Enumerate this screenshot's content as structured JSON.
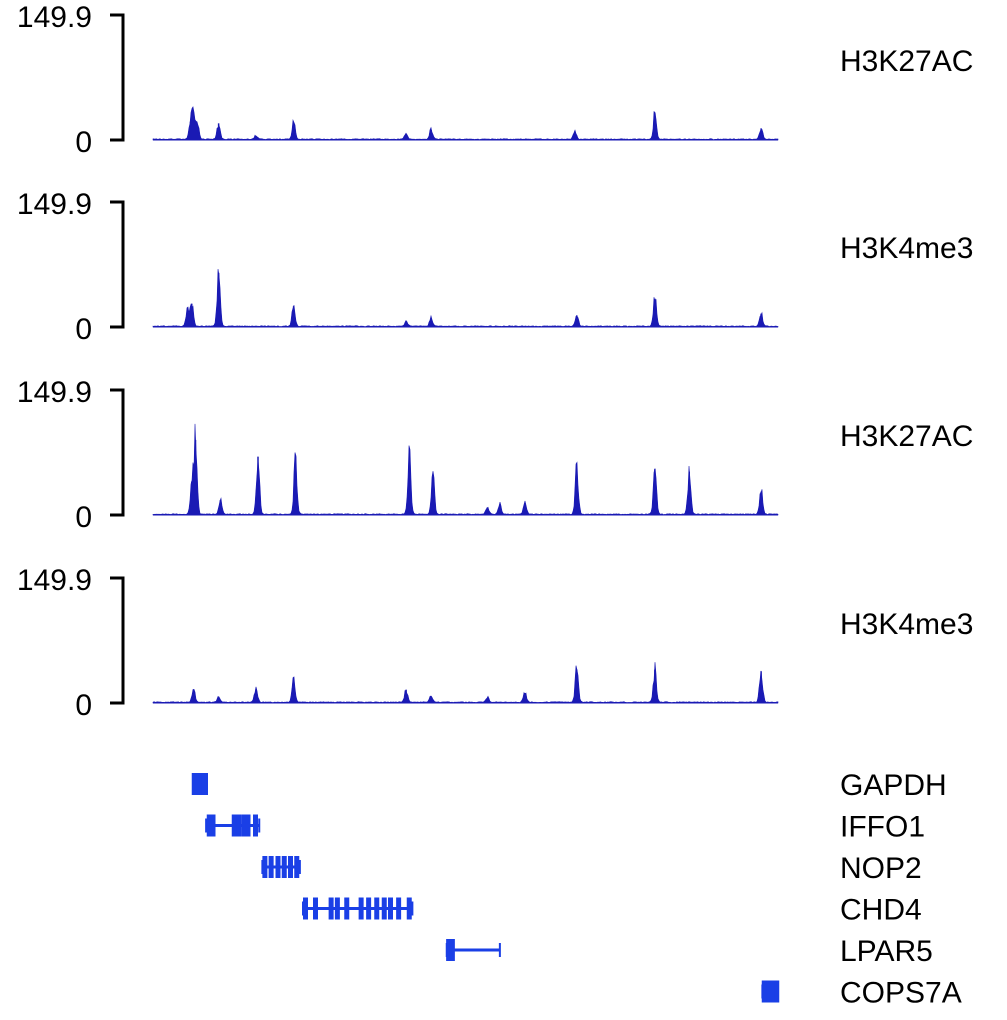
{
  "chart_data": {
    "type": "area",
    "title": "",
    "xlabel": "",
    "ylabel": "",
    "colors": {
      "signal": "#1a1ab4",
      "gene": "#1a3fe6",
      "axis": "#000000"
    },
    "ylim": [
      0,
      149.9
    ],
    "yticks": [
      "149.9",
      "0"
    ],
    "x_range": [
      0,
      100
    ],
    "tracks": [
      {
        "name": "H3K27AC",
        "peaks": [
          {
            "x": 6.5,
            "h": 30
          },
          {
            "x": 6.0,
            "h": 22
          },
          {
            "x": 7.1,
            "h": 18
          },
          {
            "x": 10.5,
            "h": 20
          },
          {
            "x": 16.5,
            "h": 5
          },
          {
            "x": 22.5,
            "h": 20
          },
          {
            "x": 40.5,
            "h": 7
          },
          {
            "x": 44.5,
            "h": 12
          },
          {
            "x": 67.5,
            "h": 10
          },
          {
            "x": 80.3,
            "h": 32
          },
          {
            "x": 97.3,
            "h": 14
          }
        ]
      },
      {
        "name": "H3K4me3",
        "peaks": [
          {
            "x": 6.2,
            "h": 28
          },
          {
            "x": 5.5,
            "h": 20
          },
          {
            "x": 10.5,
            "h": 65
          },
          {
            "x": 22.5,
            "h": 25
          },
          {
            "x": 40.5,
            "h": 6
          },
          {
            "x": 44.5,
            "h": 10
          },
          {
            "x": 67.8,
            "h": 14
          },
          {
            "x": 80.3,
            "h": 34
          },
          {
            "x": 97.3,
            "h": 16
          }
        ]
      },
      {
        "name": "H3K27AC",
        "peaks": [
          {
            "x": 6.8,
            "h": 90
          },
          {
            "x": 6.2,
            "h": 40
          },
          {
            "x": 10.8,
            "h": 18
          },
          {
            "x": 16.8,
            "h": 70
          },
          {
            "x": 22.8,
            "h": 70
          },
          {
            "x": 41.0,
            "h": 70
          },
          {
            "x": 44.8,
            "h": 45
          },
          {
            "x": 53.5,
            "h": 9
          },
          {
            "x": 55.5,
            "h": 12
          },
          {
            "x": 59.5,
            "h": 14
          },
          {
            "x": 67.8,
            "h": 58
          },
          {
            "x": 80.3,
            "h": 55
          },
          {
            "x": 85.8,
            "h": 52
          },
          {
            "x": 97.3,
            "h": 28
          }
        ]
      },
      {
        "name": "H3K4me3",
        "peaks": [
          {
            "x": 6.5,
            "h": 16
          },
          {
            "x": 10.5,
            "h": 6
          },
          {
            "x": 16.5,
            "h": 17
          },
          {
            "x": 22.5,
            "h": 26
          },
          {
            "x": 40.5,
            "h": 16
          },
          {
            "x": 44.5,
            "h": 8
          },
          {
            "x": 53.5,
            "h": 6
          },
          {
            "x": 59.5,
            "h": 12
          },
          {
            "x": 67.8,
            "h": 40
          },
          {
            "x": 80.3,
            "h": 40
          },
          {
            "x": 97.3,
            "h": 38
          }
        ]
      }
    ],
    "genes": [
      {
        "name": "GAPDH",
        "start": 6.5,
        "end": 8.5,
        "exons": [
          6.6,
          7.1,
          7.6,
          8.1,
          8.4
        ]
      },
      {
        "name": "IFFO1",
        "start": 8.5,
        "end": 17.0,
        "exons": [
          9.0,
          9.6,
          13.0,
          13.7,
          14.5,
          15.2,
          16.4
        ]
      },
      {
        "name": "NOP2",
        "start": 17.5,
        "end": 23.5,
        "exons": [
          17.9,
          18.9,
          20.0,
          21.0,
          22.0,
          23.0
        ]
      },
      {
        "name": "CHD4",
        "start": 24.0,
        "end": 41.5,
        "exons": [
          24.4,
          26.0,
          28.5,
          29.5,
          31.0,
          33.3,
          34.5,
          35.8,
          37.0,
          38.0,
          39.3,
          41.0
        ]
      },
      {
        "name": "LPAR5",
        "start": 47.0,
        "end": 55.5,
        "exons": [
          47.3,
          47.9
        ]
      },
      {
        "name": "COPS7A",
        "start": 97.5,
        "end": 100.0,
        "exons": [
          97.8,
          98.5,
          99.2,
          99.8
        ]
      }
    ]
  }
}
